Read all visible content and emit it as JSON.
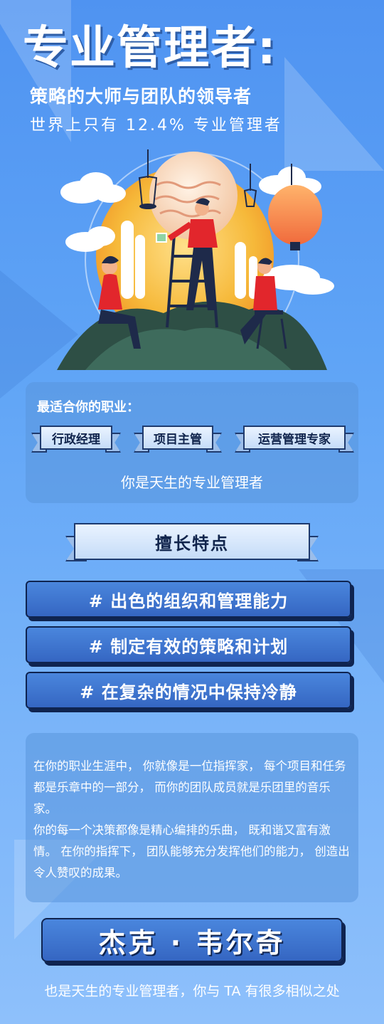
{
  "header": {
    "title": "专业管理者:",
    "subtitle": "策略的大师与团队的领导者",
    "stat": "世界上只有 12.4% 专业管理者"
  },
  "career": {
    "heading": "最适合你的职业：",
    "jobs": [
      "行政经理",
      "项目主管",
      "运营管理专家"
    ],
    "summary": "你是天生的专业管理者"
  },
  "strengths": {
    "heading": "擅长特点",
    "items": [
      "# 出色的组织和管理能力",
      "# 制定有效的策略和计划",
      "# 在复杂的情况中保持冷静"
    ]
  },
  "description": {
    "paragraph1": "在你的职业生涯中，  你就像是一位指挥家，  每个项目和任务都是乐章中的一部分，  而你的团队成员就是乐团里的音乐家。",
    "paragraph2": "你的每一个决策都像是精心编排的乐曲，  既和谐又富有激情。  在你的指挥下，  团队能够充分发挥他们的能力，  创造出令人赞叹的成果。"
  },
  "celebrity": {
    "name": "杰克 · 韦尔奇",
    "caption": "也是天生的专业管理者，你与 TA 有很多相似之处"
  },
  "colors": {
    "background_top": "#4f93f1",
    "background_bottom": "#8ec0fb",
    "accent_red": "#e2262c",
    "sun_yellow": "#f6c341",
    "button_blue": "#3f79d4",
    "outline_navy": "#0f2450"
  }
}
